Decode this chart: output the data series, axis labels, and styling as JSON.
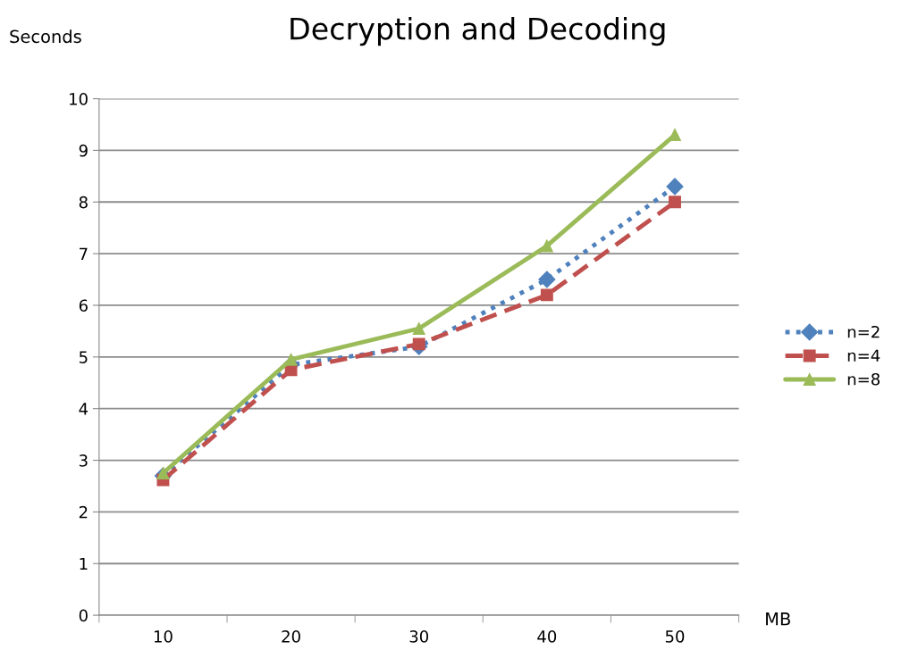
{
  "chart_data": {
    "type": "line",
    "title": "Decryption and Decoding",
    "ylabel": "Seconds",
    "xlabel": "MB",
    "categories": [
      "10",
      "20",
      "30",
      "40",
      "50"
    ],
    "ylim": [
      0,
      10
    ],
    "yticks": [
      0,
      1,
      2,
      3,
      4,
      5,
      6,
      7,
      8,
      9,
      10
    ],
    "grid": "y",
    "legend": "right",
    "series": [
      {
        "name": "n=2",
        "color": "#4f81bd",
        "marker": "diamond",
        "line_style": "dotted",
        "values": [
          2.7,
          4.85,
          5.2,
          6.5,
          8.3
        ]
      },
      {
        "name": "n=4",
        "color": "#c0504d",
        "marker": "square",
        "line_style": "dashed",
        "values": [
          2.62,
          4.75,
          5.25,
          6.2,
          8.0
        ]
      },
      {
        "name": "n=8",
        "color": "#9bbb59",
        "marker": "triangle",
        "line_style": "solid",
        "values": [
          2.75,
          4.95,
          5.55,
          7.15,
          9.3
        ]
      }
    ]
  }
}
